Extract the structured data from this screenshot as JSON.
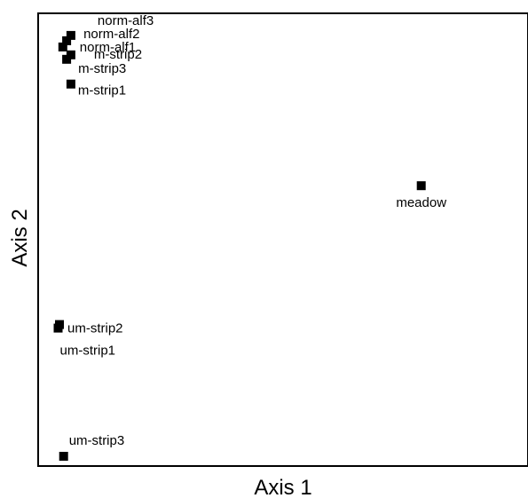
{
  "chart_data": {
    "type": "scatter",
    "title": "",
    "xlabel": "Axis 1",
    "ylabel": "Axis 2",
    "xlim": [
      0,
      100
    ],
    "ylim": [
      0,
      100
    ],
    "grid": false,
    "legend": "none",
    "tick_labels": false,
    "points": [
      {
        "label": "norm-alf3",
        "x": 5.2,
        "y": 95.8
      },
      {
        "label": "norm-alf2",
        "x": 4.2,
        "y": 94.6
      },
      {
        "label": "norm-alf1",
        "x": 3.3,
        "y": 93.2
      },
      {
        "label": "m-strip2",
        "x": 5.2,
        "y": 91.4
      },
      {
        "label": "m-strip3",
        "x": 4.2,
        "y": 90.4
      },
      {
        "label": "m-strip1",
        "x": 5.2,
        "y": 84.8
      },
      {
        "label": "meadow",
        "x": 87.8,
        "y": 61.8
      },
      {
        "label": "um-strip2",
        "x": 2.5,
        "y": 30.4
      },
      {
        "label": "um-strip1",
        "x": 2.2,
        "y": 29.6
      },
      {
        "label": "um-strip3",
        "x": 3.5,
        "y": 0.6
      }
    ],
    "marker_color": "#000000"
  }
}
